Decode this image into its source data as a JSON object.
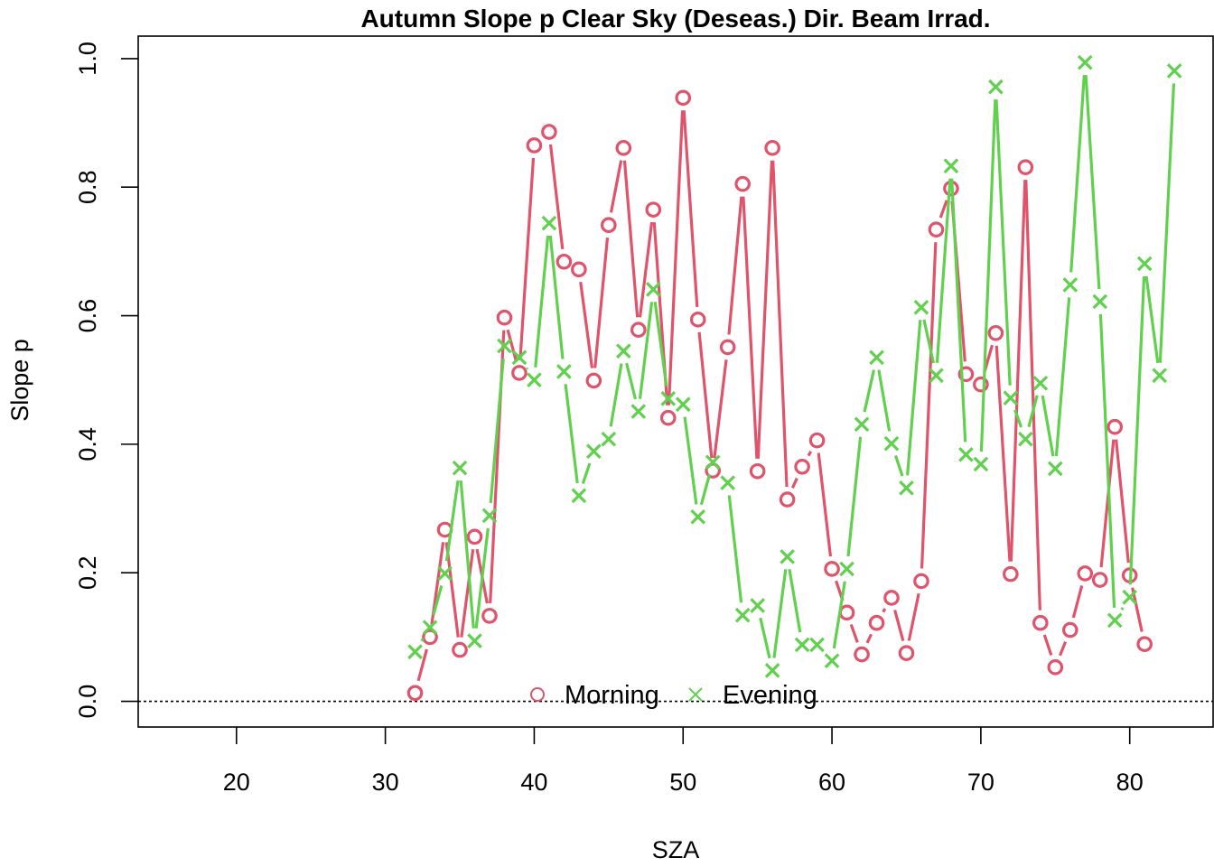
{
  "chart_data": {
    "type": "line",
    "title": "Autumn Slope p Clear Sky (Deseas.) Dir. Beam Irrad.",
    "xlabel": "SZA",
    "ylabel": "Slope p",
    "xlim": [
      13.4,
      85.6
    ],
    "ylim": [
      -0.04,
      1.035
    ],
    "x_ticks": [
      "20",
      "30",
      "40",
      "50",
      "60",
      "70",
      "80"
    ],
    "y_ticks": [
      "0.0",
      "0.2",
      "0.4",
      "0.6",
      "0.8",
      "1.0"
    ],
    "reference_line_y": 0,
    "legend_position": "bottom-center",
    "series": [
      {
        "name": "Morning",
        "color": "#DF536B",
        "marker": "circle",
        "x": [
          32,
          33,
          34,
          35,
          36,
          37,
          38,
          39,
          40,
          41,
          42,
          43,
          44,
          45,
          46,
          47,
          48,
          49,
          50,
          51,
          52,
          53,
          54,
          55,
          56,
          57,
          58,
          59,
          60,
          61,
          62,
          63,
          64,
          65,
          66,
          67,
          68,
          69,
          70,
          71,
          72,
          73,
          74,
          75,
          76,
          77,
          78,
          79,
          80,
          81
        ],
        "values": [
          0.013,
          0.1,
          0.267,
          0.08,
          0.256,
          0.133,
          0.597,
          0.511,
          0.865,
          0.886,
          0.684,
          0.672,
          0.499,
          0.741,
          0.861,
          0.578,
          0.765,
          0.441,
          0.939,
          0.594,
          0.359,
          0.551,
          0.805,
          0.358,
          0.861,
          0.314,
          0.365,
          0.406,
          0.206,
          0.138,
          0.073,
          0.122,
          0.161,
          0.075,
          0.187,
          0.734,
          0.798,
          0.509,
          0.493,
          0.573,
          0.198,
          0.831,
          0.122,
          0.053,
          0.111,
          0.199,
          0.189,
          0.427,
          0.196,
          0.089
        ]
      },
      {
        "name": "Evening",
        "color": "#61D04F",
        "marker": "cross",
        "x": [
          32,
          33,
          34,
          35,
          36,
          37,
          38,
          39,
          40,
          41,
          42,
          43,
          44,
          45,
          46,
          47,
          48,
          49,
          50,
          51,
          52,
          53,
          54,
          55,
          56,
          57,
          58,
          59,
          60,
          61,
          62,
          63,
          64,
          65,
          66,
          67,
          68,
          69,
          70,
          71,
          72,
          73,
          74,
          75,
          76,
          77,
          78,
          79,
          80,
          81,
          82,
          83
        ],
        "values": [
          0.077,
          0.115,
          0.199,
          0.363,
          0.094,
          0.289,
          0.553,
          0.535,
          0.5,
          0.744,
          0.513,
          0.32,
          0.389,
          0.408,
          0.545,
          0.451,
          0.641,
          0.471,
          0.462,
          0.287,
          0.372,
          0.34,
          0.134,
          0.149,
          0.048,
          0.225,
          0.088,
          0.088,
          0.063,
          0.206,
          0.431,
          0.535,
          0.401,
          0.332,
          0.613,
          0.507,
          0.833,
          0.384,
          0.369,
          0.956,
          0.472,
          0.408,
          0.495,
          0.362,
          0.648,
          0.994,
          0.622,
          0.126,
          0.162,
          0.681,
          0.507,
          0.981
        ]
      }
    ]
  }
}
